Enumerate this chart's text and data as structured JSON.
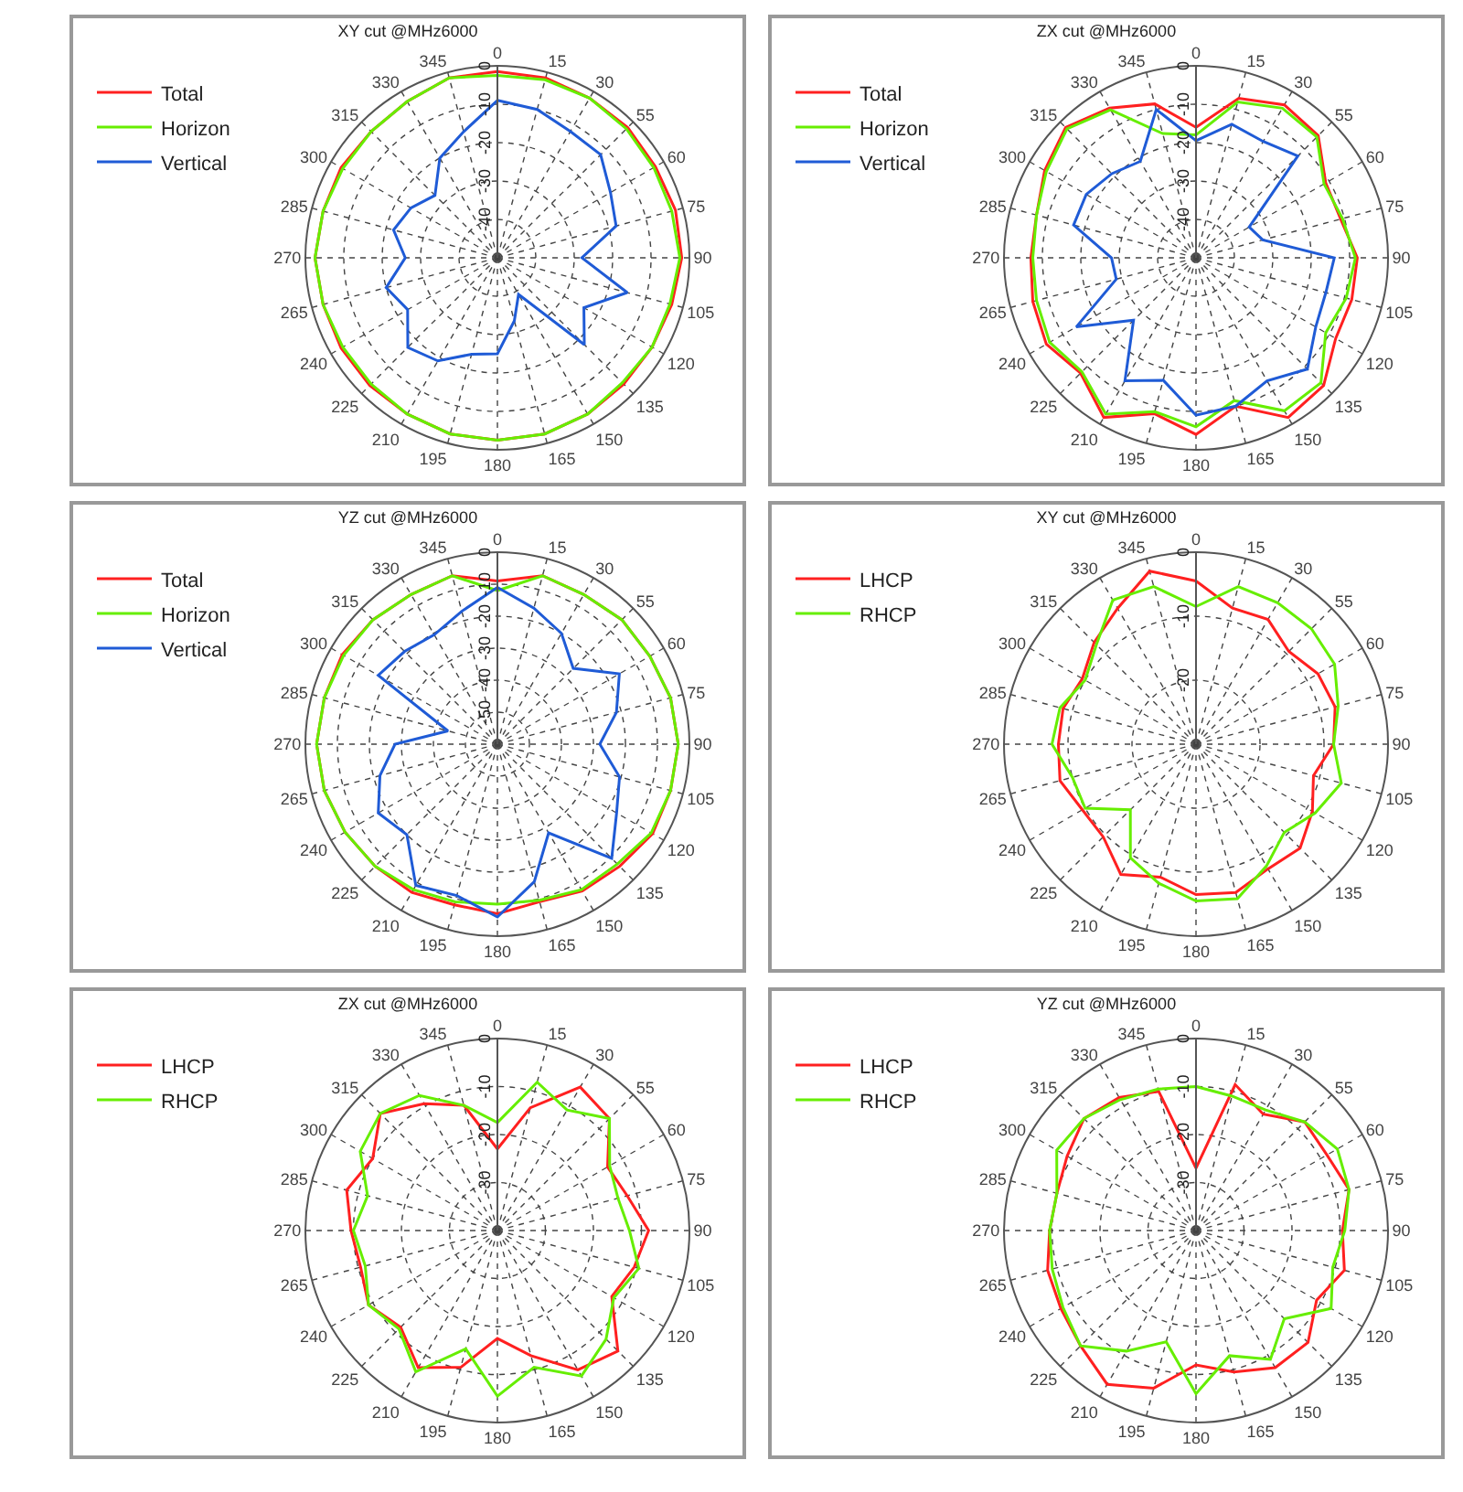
{
  "chart_data": [
    {
      "type": "radar",
      "title": "XY cut @MHz6000",
      "categories": [
        "0",
        "15",
        "30",
        "55",
        "60",
        "75",
        "90",
        "105",
        "120",
        "135",
        "150",
        "165",
        "180",
        "195",
        "210",
        "225",
        "240",
        "265",
        "270",
        "285",
        "300",
        "315",
        "330",
        "345"
      ],
      "ylim": [
        -50,
        0
      ],
      "yticks": [
        0,
        -10,
        -20,
        -30,
        -40
      ],
      "grid": true,
      "legend": "top left",
      "series": [
        {
          "name": "Total",
          "color": "#ff2020",
          "values": [
            -1.5,
            -1.5,
            -2,
            -2,
            -2.5,
            -2,
            -2,
            -3,
            -3.5,
            -3.5,
            -3,
            -2.5,
            -2.5,
            -2.5,
            -3,
            -3,
            -3,
            -3,
            -2.5,
            -3,
            -3,
            -3.5,
            -3,
            -1.5
          ]
        },
        {
          "name": "Horizon",
          "color": "#66ee00",
          "values": [
            -2.5,
            -2,
            -2,
            -2.5,
            -3,
            -3,
            -2.5,
            -3.5,
            -3.5,
            -4,
            -3,
            -2.5,
            -2.5,
            -2.5,
            -3,
            -3.5,
            -3.5,
            -3,
            -2.5,
            -3,
            -3.5,
            -3.5,
            -3,
            -1.5
          ]
        },
        {
          "name": "Vertical",
          "color": "#1f5bd6",
          "values": [
            -9,
            -10,
            -12,
            -12,
            -16,
            -18,
            -28,
            -15,
            -24,
            -18,
            -39,
            -33,
            -25,
            -24,
            -19,
            -17,
            -23,
            -20,
            -26,
            -22,
            -24,
            -27,
            -20,
            -16
          ]
        }
      ]
    },
    {
      "type": "radar",
      "title": "ZX cut @MHz6000",
      "categories": [
        "0",
        "15",
        "30",
        "55",
        "60",
        "75",
        "90",
        "105",
        "120",
        "135",
        "150",
        "165",
        "180",
        "195",
        "210",
        "225",
        "240",
        "265",
        "270",
        "285",
        "300",
        "315",
        "330",
        "345"
      ],
      "ylim": [
        -50,
        0
      ],
      "yticks": [
        0,
        -10,
        -20,
        -30,
        -40
      ],
      "grid": true,
      "legend": "top left",
      "series": [
        {
          "name": "Total",
          "color": "#ff2020",
          "values": [
            -16,
            -7,
            -4,
            -5,
            -11,
            -11,
            -8,
            -8,
            -8,
            -3,
            -2,
            -10,
            -4,
            -8,
            -2,
            -7.5,
            -5,
            -6,
            -7,
            -7,
            -4.5,
            -2,
            -5,
            -8.5
          ]
        },
        {
          "name": "Horizon",
          "color": "#66ee00",
          "values": [
            -18,
            -8,
            -5,
            -5.5,
            -11.5,
            -10.5,
            -8.5,
            -9.5,
            -11,
            -4,
            -4,
            -11.5,
            -6,
            -8.5,
            -3,
            -8,
            -6,
            -7,
            -7.5,
            -7,
            -5,
            -2.5,
            -5.5,
            -16.5
          ]
        },
        {
          "name": "Vertical",
          "color": "#1f5bd6",
          "values": [
            -19.5,
            -14,
            -15,
            -12.5,
            -34,
            -32,
            -14,
            -15,
            -14,
            -9,
            -13,
            -10,
            -9,
            -17,
            -13,
            -27,
            -14,
            -28.5,
            -28,
            -17,
            -17,
            -19,
            -21,
            -10
          ]
        }
      ]
    },
    {
      "type": "radar",
      "title": "YZ cut @MHz6000",
      "categories": [
        "0",
        "15",
        "30",
        "55",
        "60",
        "75",
        "90",
        "105",
        "120",
        "135",
        "150",
        "165",
        "180",
        "195",
        "210",
        "225",
        "240",
        "265",
        "270",
        "285",
        "300",
        "315",
        "330",
        "345"
      ],
      "ylim": [
        -60,
        0
      ],
      "yticks": [
        0,
        -10,
        -20,
        -30,
        -40,
        -50
      ],
      "grid": true,
      "legend": "top left",
      "series": [
        {
          "name": "Total",
          "color": "#ff2020",
          "values": [
            -9,
            -5.5,
            -6,
            -5,
            -5,
            -4,
            -3.5,
            -4,
            -4,
            -6,
            -7,
            -9,
            -7,
            -8,
            -6.5,
            -6,
            -5,
            -4,
            -3.5,
            -4,
            -4,
            -5,
            -6,
            -5.5
          ]
        },
        {
          "name": "Horizon",
          "color": "#66ee00",
          "values": [
            -12,
            -5.5,
            -6,
            -5,
            -5,
            -4,
            -3.5,
            -4,
            -4.5,
            -7,
            -7.5,
            -9.5,
            -10,
            -9,
            -7.5,
            -6,
            -5,
            -4,
            -3.5,
            -4,
            -4.5,
            -5,
            -6,
            -5.5
          ]
        },
        {
          "name": "Vertical",
          "color": "#1f5bd6",
          "values": [
            -11,
            -16,
            -20,
            -26.5,
            -16,
            -21.5,
            -28,
            -20.5,
            -17,
            -9.5,
            -28,
            -15.5,
            -6,
            -11,
            -9,
            -20,
            -17,
            -22,
            -28,
            -44,
            -17,
            -19,
            -20.5,
            -17
          ]
        }
      ]
    },
    {
      "type": "radar",
      "title": "XY cut @MHz6000",
      "categories": [
        "0",
        "15",
        "30",
        "55",
        "60",
        "75",
        "90",
        "105",
        "120",
        "135",
        "150",
        "165",
        "180",
        "195",
        "210",
        "225",
        "240",
        "265",
        "270",
        "285",
        "300",
        "315",
        "330",
        "345"
      ],
      "ylim": [
        -30,
        0
      ],
      "yticks": [
        0,
        -10,
        -20
      ],
      "grid": true,
      "legend": "top left",
      "series": [
        {
          "name": "LHCP",
          "color": "#ff2020",
          "values": [
            -4.5,
            -8,
            -7.5,
            -9.5,
            -8,
            -7.5,
            -8.5,
            -11,
            -9,
            -7,
            -7.5,
            -6,
            -6.5,
            -8.5,
            -6.5,
            -9.5,
            -9.5,
            -8,
            -8.5,
            -8.5,
            -9.5,
            -7.5,
            -5.5,
            -2
          ]
        },
        {
          "name": "RHCP",
          "color": "#66ee00",
          "values": [
            -8.5,
            -4.5,
            -4.5,
            -4.5,
            -5,
            -7,
            -8.5,
            -6.5,
            -8.5,
            -10.5,
            -8,
            -5,
            -5.5,
            -7.5,
            -9.5,
            -15.5,
            -10,
            -10,
            -7.5,
            -8,
            -10,
            -8,
            -4,
            -4.5
          ]
        }
      ]
    },
    {
      "type": "radar",
      "title": "ZX cut @MHz6000",
      "categories": [
        "0",
        "15",
        "30",
        "55",
        "60",
        "75",
        "90",
        "105",
        "120",
        "135",
        "150",
        "165",
        "180",
        "195",
        "210",
        "225",
        "240",
        "265",
        "270",
        "285",
        "300",
        "315",
        "330",
        "345"
      ],
      "ylim": [
        -40,
        0
      ],
      "yticks": [
        0,
        -10,
        -20,
        -30
      ],
      "grid": true,
      "legend": "top left",
      "series": [
        {
          "name": "LHCP",
          "color": "#ff2020",
          "values": [
            -23,
            -13.5,
            -5.5,
            -7,
            -13.5,
            -12,
            -8.5,
            -10.5,
            -12.5,
            -4.5,
            -6.5,
            -13,
            -17.5,
            -10.5,
            -7,
            -11.5,
            -9,
            -10.5,
            -9.5,
            -7.5,
            -10,
            -5.5,
            -9.5,
            -13
          ]
        },
        {
          "name": "RHCP",
          "color": "#66ee00",
          "values": [
            -17.5,
            -8,
            -11,
            -7,
            -13,
            -14,
            -12.5,
            -9.5,
            -12,
            -8,
            -5,
            -10.5,
            -5.5,
            -14.5,
            -6,
            -11,
            -9,
            -11.5,
            -10,
            -12,
            -7,
            -5.5,
            -7.5,
            -13
          ]
        }
      ]
    },
    {
      "type": "radar",
      "title": "YZ cut @MHz6000",
      "categories": [
        "0",
        "15",
        "30",
        "55",
        "60",
        "75",
        "90",
        "105",
        "120",
        "135",
        "150",
        "165",
        "180",
        "195",
        "210",
        "225",
        "240",
        "265",
        "270",
        "285",
        "300",
        "315",
        "330",
        "345"
      ],
      "ylim": [
        -40,
        0
      ],
      "yticks": [
        0,
        -10,
        -20,
        -30
      ],
      "grid": true,
      "legend": "top left",
      "series": [
        {
          "name": "LHCP",
          "color": "#ff2020",
          "values": [
            -27,
            -8.5,
            -12,
            -8,
            -8.5,
            -7,
            -9.5,
            -8,
            -11,
            -7,
            -7,
            -9.5,
            -12,
            -6,
            -3,
            -6,
            -7.5,
            -8,
            -9.5,
            -10,
            -9,
            -7,
            -8,
            -10
          ]
        },
        {
          "name": "RHCP",
          "color": "#66ee00",
          "values": [
            -10,
            -11,
            -11,
            -8,
            -6,
            -7,
            -9,
            -10.5,
            -7.5,
            -14,
            -9,
            -13,
            -6,
            -16,
            -11,
            -6,
            -8,
            -9,
            -9.5,
            -10,
            -6.5,
            -7,
            -8.5,
            -9.5
          ]
        }
      ]
    }
  ]
}
